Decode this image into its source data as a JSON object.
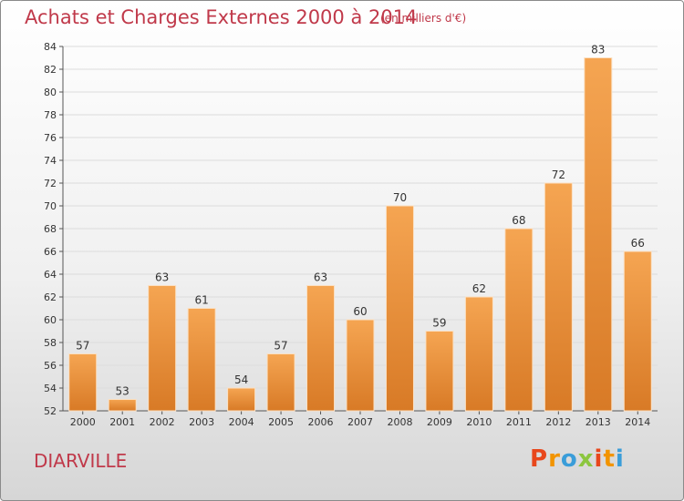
{
  "header": {
    "title": "Achats et Charges Externes 2000 à 2014",
    "subtitle": "(en milliers d'€)"
  },
  "footer": {
    "city": "DIARVILLE",
    "logo_letters": [
      "P",
      "r",
      "o",
      "x",
      "i",
      "t",
      "i"
    ],
    "logo_colors": [
      "#e8471c",
      "#f29400",
      "#3a9dd9",
      "#8cc63f",
      "#e8471c",
      "#f29400",
      "#3a9dd9"
    ]
  },
  "colors": {
    "title": "#c0394a",
    "bar_light": "#f5a552",
    "bar_dark": "#d87a26"
  },
  "chart_data": {
    "type": "bar",
    "title": "Achats et Charges Externes 2000 à 2014",
    "subtitle": "(en milliers d'€)",
    "categories": [
      "2000",
      "2001",
      "2002",
      "2003",
      "2004",
      "2005",
      "2006",
      "2007",
      "2008",
      "2009",
      "2010",
      "2011",
      "2012",
      "2013",
      "2014"
    ],
    "values": [
      57,
      53,
      63,
      61,
      54,
      57,
      63,
      60,
      70,
      59,
      62,
      68,
      72,
      83,
      66
    ],
    "ylim": [
      52,
      84
    ],
    "yticks": [
      52,
      54,
      56,
      58,
      60,
      62,
      64,
      66,
      68,
      70,
      72,
      74,
      76,
      78,
      80,
      82,
      84
    ],
    "grid": true,
    "xlabel": "",
    "ylabel": ""
  }
}
